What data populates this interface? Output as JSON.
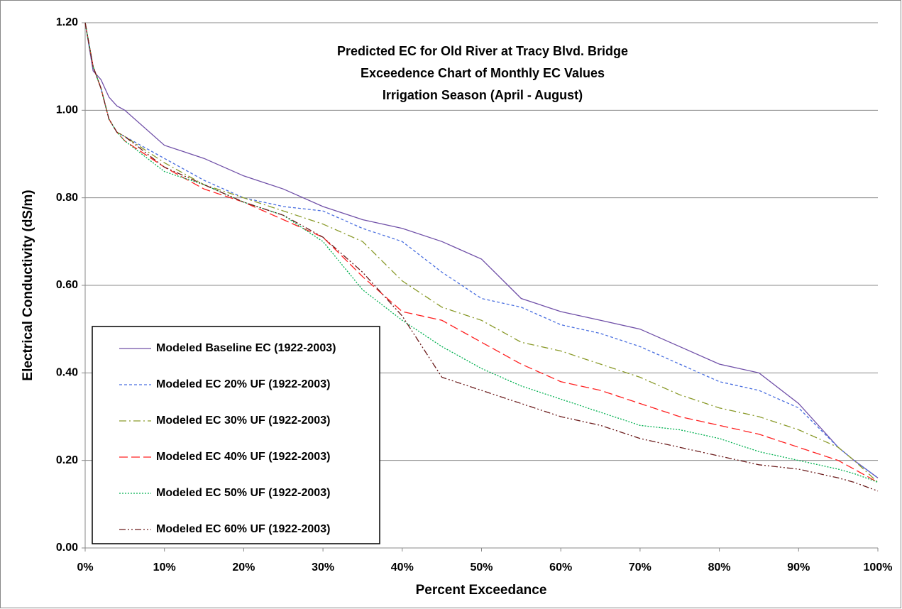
{
  "chart_data": {
    "type": "line",
    "title": [
      "Predicted EC for Old River at Tracy Blvd. Bridge",
      "Exceedence Chart of Monthly EC Values",
      "Irrigation Season (April - August)"
    ],
    "x_label": "Percent Exceedance",
    "y_label": "Electrical Conductivity (dS/m)",
    "x": [
      0,
      1,
      2,
      3,
      4,
      5,
      10,
      15,
      20,
      25,
      30,
      35,
      40,
      45,
      50,
      55,
      60,
      65,
      70,
      75,
      80,
      85,
      90,
      95,
      97,
      100
    ],
    "series": [
      {
        "name": "Modeled Baseline EC (1922-2003)",
        "color": "#7050a8",
        "style": "solid",
        "values": [
          1.2,
          1.09,
          1.07,
          1.03,
          1.01,
          1.0,
          0.92,
          0.89,
          0.85,
          0.82,
          0.78,
          0.75,
          0.73,
          0.7,
          0.66,
          0.57,
          0.54,
          0.52,
          0.5,
          0.46,
          0.42,
          0.4,
          0.33,
          0.23,
          0.2,
          0.16
        ]
      },
      {
        "name": "Modeled EC 20% UF (1922-2003)",
        "color": "#4a6fe0",
        "style": "dashed",
        "values": [
          1.2,
          1.1,
          1.05,
          0.98,
          0.95,
          0.94,
          0.89,
          0.84,
          0.8,
          0.78,
          0.77,
          0.73,
          0.7,
          0.63,
          0.57,
          0.55,
          0.51,
          0.49,
          0.46,
          0.42,
          0.38,
          0.36,
          0.32,
          0.23,
          0.2,
          0.16
        ]
      },
      {
        "name": "Modeled EC 30% UF (1922-2003)",
        "color": "#8a9a2a",
        "style": "dash-dot",
        "values": [
          1.2,
          1.1,
          1.05,
          0.98,
          0.95,
          0.94,
          0.88,
          0.83,
          0.8,
          0.77,
          0.74,
          0.7,
          0.61,
          0.55,
          0.52,
          0.47,
          0.45,
          0.42,
          0.39,
          0.35,
          0.32,
          0.3,
          0.27,
          0.23,
          0.2,
          0.15
        ]
      },
      {
        "name": "Modeled EC 40% UF (1922-2003)",
        "color": "#ff2020",
        "style": "long-dash",
        "values": [
          1.2,
          1.1,
          1.05,
          0.98,
          0.95,
          0.93,
          0.87,
          0.82,
          0.79,
          0.75,
          0.71,
          0.62,
          0.54,
          0.52,
          0.47,
          0.42,
          0.38,
          0.36,
          0.33,
          0.3,
          0.28,
          0.26,
          0.23,
          0.2,
          0.18,
          0.15
        ]
      },
      {
        "name": "Modeled EC 50% UF (1922-2003)",
        "color": "#00b050",
        "style": "dotted",
        "values": [
          1.2,
          1.1,
          1.05,
          0.98,
          0.95,
          0.93,
          0.86,
          0.83,
          0.79,
          0.76,
          0.7,
          0.59,
          0.52,
          0.46,
          0.41,
          0.37,
          0.34,
          0.31,
          0.28,
          0.27,
          0.25,
          0.22,
          0.2,
          0.18,
          0.17,
          0.15
        ]
      },
      {
        "name": "Modeled EC 60% UF (1922-2003)",
        "color": "#6b1b1b",
        "style": "dash-dot-dot",
        "values": [
          1.2,
          1.1,
          1.05,
          0.98,
          0.95,
          0.94,
          0.87,
          0.83,
          0.79,
          0.76,
          0.71,
          0.63,
          0.53,
          0.39,
          0.36,
          0.33,
          0.3,
          0.28,
          0.25,
          0.23,
          0.21,
          0.19,
          0.18,
          0.16,
          0.15,
          0.13
        ]
      }
    ],
    "xlim": [
      0,
      100
    ],
    "xticks": [
      {
        "value": 0,
        "label": "0%"
      },
      {
        "value": 10,
        "label": "10%"
      },
      {
        "value": 20,
        "label": "20%"
      },
      {
        "value": 30,
        "label": "30%"
      },
      {
        "value": 40,
        "label": "40%"
      },
      {
        "value": 50,
        "label": "50%"
      },
      {
        "value": 60,
        "label": "60%"
      },
      {
        "value": 70,
        "label": "70%"
      },
      {
        "value": 80,
        "label": "80%"
      },
      {
        "value": 90,
        "label": "90%"
      },
      {
        "value": 100,
        "label": "100%"
      }
    ],
    "ylim": [
      0,
      1.2
    ],
    "yticks": [
      {
        "value": 0,
        "label": "0.00"
      },
      {
        "value": 0.2,
        "label": "0.20"
      },
      {
        "value": 0.4,
        "label": "0.40"
      },
      {
        "value": 0.6,
        "label": "0.60"
      },
      {
        "value": 0.8,
        "label": "0.80"
      },
      {
        "value": 1.0,
        "label": "1.00"
      },
      {
        "value": 1.2,
        "label": "1.20"
      }
    ],
    "grid": true,
    "legend": "lower left"
  }
}
